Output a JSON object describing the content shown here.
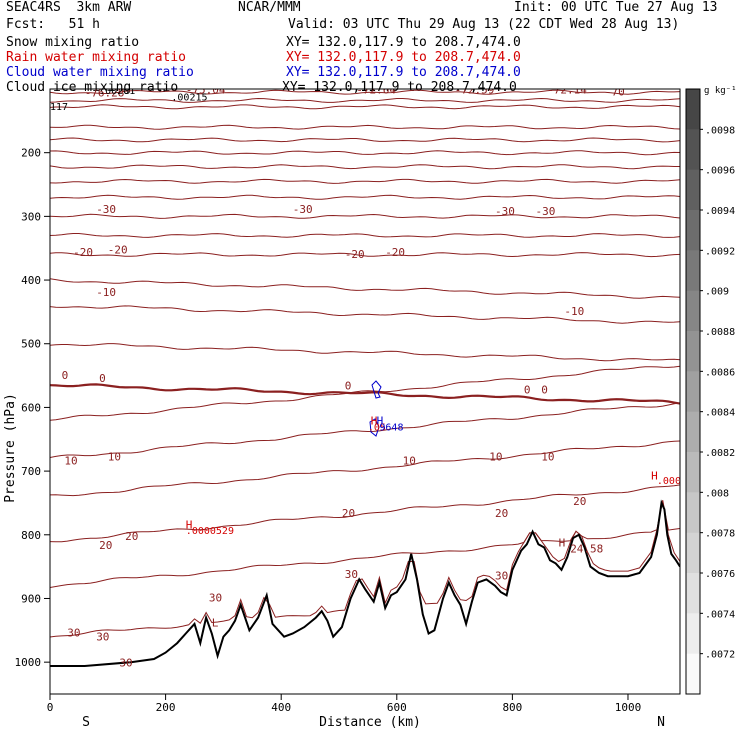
{
  "header": {
    "title_left": "SEAC4RS  3km ARW",
    "title_center": "NCAR/MMM",
    "init": "Init: 00 UTC Tue 27 Aug 13",
    "fcst": "Fcst:   51 h",
    "valid": "Valid: 03 UTC Thu 29 Aug 13 (22 CDT Wed 28 Aug 13)"
  },
  "fields": [
    {
      "name": "Snow mixing ratio",
      "xy": "XY= 132.0,117.9 to 208.7,474.0",
      "color": "#000000"
    },
    {
      "name": "Rain water mixing ratio",
      "xy": "XY= 132.0,117.9 to 208.7,474.0",
      "color": "#d40000"
    },
    {
      "name": "Cloud water mixing ratio",
      "xy": "XY= 132.0,117.9 to 208.7,474.0",
      "color": "#0000cc"
    },
    {
      "name": "Cloud ice mixing ratio",
      "xy": "XY= 132.0,117.9 to 208.7,474.0",
      "color": "#000000"
    }
  ],
  "chart_data": {
    "type": "contour cross-section",
    "xlabel": "Distance (km)",
    "ylabel": "Pressure (hPa)",
    "xlim": [
      0,
      1090
    ],
    "ylim": [
      1050,
      100
    ],
    "x_ticks": [
      0,
      200,
      400,
      600,
      800,
      1000
    ],
    "y_ticks": [
      200,
      300,
      400,
      500,
      600,
      700,
      800,
      900,
      1000
    ],
    "x_end_labels": {
      "left": "S",
      "right": "N"
    },
    "colorbar": {
      "unit": "g kg⁻¹",
      "ticks": [
        ".0098",
        ".0096",
        ".0094",
        ".0092",
        ".009",
        ".0088",
        ".0086",
        ".0084",
        ".0082",
        ".008",
        ".0078",
        ".0076",
        ".0074",
        ".0072"
      ]
    },
    "temperature_contour_color": "#8b2020",
    "terrain_color": "#000000",
    "terrain": {
      "x": [
        0,
        60,
        140,
        180,
        200,
        220,
        235,
        250,
        260,
        270,
        280,
        290,
        300,
        310,
        320,
        330,
        345,
        360,
        375,
        385,
        395,
        405,
        420,
        440,
        460,
        470,
        480,
        490,
        505,
        520,
        535,
        545,
        560,
        570,
        580,
        590,
        600,
        615,
        625,
        635,
        645,
        655,
        665,
        680,
        690,
        700,
        710,
        720,
        730,
        740,
        755,
        770,
        780,
        790,
        800,
        815,
        825,
        835,
        845,
        855,
        865,
        875,
        885,
        895,
        905,
        915,
        925,
        935,
        950,
        965,
        980,
        1000,
        1020,
        1040,
        1050,
        1058,
        1063,
        1068,
        1075,
        1083,
        1090
      ],
      "p": [
        1006,
        1006,
        1000,
        995,
        985,
        970,
        955,
        940,
        970,
        930,
        955,
        990,
        960,
        950,
        935,
        910,
        950,
        930,
        895,
        940,
        950,
        960,
        955,
        945,
        930,
        920,
        935,
        960,
        945,
        900,
        870,
        885,
        905,
        875,
        915,
        895,
        890,
        870,
        830,
        870,
        925,
        955,
        950,
        900,
        875,
        895,
        910,
        940,
        905,
        875,
        870,
        880,
        890,
        895,
        855,
        825,
        815,
        795,
        815,
        820,
        840,
        845,
        855,
        835,
        805,
        800,
        820,
        850,
        860,
        865,
        865,
        865,
        860,
        835,
        800,
        750,
        760,
        800,
        830,
        840,
        850
      ]
    },
    "isotherm_levels": [
      -76,
      -72,
      -70,
      -60,
      -55,
      -50,
      -45,
      -40,
      -35,
      -30,
      -25,
      -20,
      -15,
      -10,
      -5,
      0,
      5,
      10,
      15,
      20,
      25,
      30
    ],
    "contour_labels": [
      {
        "text": "-76.28",
        "x": 60,
        "p": 112,
        "color": "#8b2020"
      },
      {
        "text": "-75.04",
        "x": 235,
        "p": 107,
        "color": "#8b2020"
      },
      {
        "text": "-72.64",
        "x": 530,
        "p": 107,
        "color": "#8b2020"
      },
      {
        "text": "-72.59",
        "x": 700,
        "p": 107,
        "color": "#8b2020"
      },
      {
        "text": "-72.14",
        "x": 860,
        "p": 107,
        "color": "#8b2020"
      },
      {
        "text": "-70",
        "x": 960,
        "p": 110,
        "color": "#8b2020"
      },
      {
        "text": "-30",
        "x": 80,
        "p": 295,
        "color": "#8b2020"
      },
      {
        "text": "-30",
        "x": 420,
        "p": 295,
        "color": "#8b2020"
      },
      {
        "text": "-30",
        "x": 770,
        "p": 298,
        "color": "#8b2020"
      },
      {
        "text": "-30",
        "x": 840,
        "p": 298,
        "color": "#8b2020"
      },
      {
        "text": "-20",
        "x": 40,
        "p": 362,
        "color": "#8b2020"
      },
      {
        "text": "-20",
        "x": 100,
        "p": 358,
        "color": "#8b2020"
      },
      {
        "text": "-20",
        "x": 510,
        "p": 365,
        "color": "#8b2020"
      },
      {
        "text": "-20",
        "x": 580,
        "p": 362,
        "color": "#8b2020"
      },
      {
        "text": "-10",
        "x": 80,
        "p": 425,
        "color": "#8b2020"
      },
      {
        "text": "-10",
        "x": 890,
        "p": 455,
        "color": "#8b2020"
      },
      {
        "text": "0",
        "x": 20,
        "p": 555,
        "color": "#8b2020"
      },
      {
        "text": "0",
        "x": 85,
        "p": 560,
        "color": "#8b2020"
      },
      {
        "text": "0",
        "x": 510,
        "p": 572,
        "color": "#8b2020"
      },
      {
        "text": "0",
        "x": 820,
        "p": 578,
        "color": "#8b2020"
      },
      {
        "text": "0",
        "x": 850,
        "p": 578,
        "color": "#8b2020"
      },
      {
        "text": "10",
        "x": 25,
        "p": 690,
        "color": "#8b2020"
      },
      {
        "text": "10",
        "x": 100,
        "p": 683,
        "color": "#8b2020"
      },
      {
        "text": "10",
        "x": 610,
        "p": 690,
        "color": "#8b2020"
      },
      {
        "text": "10",
        "x": 760,
        "p": 683,
        "color": "#8b2020"
      },
      {
        "text": "10",
        "x": 850,
        "p": 683,
        "color": "#8b2020"
      },
      {
        "text": "20",
        "x": 85,
        "p": 822,
        "color": "#8b2020"
      },
      {
        "text": "20",
        "x": 130,
        "p": 808,
        "color": "#8b2020"
      },
      {
        "text": "20",
        "x": 505,
        "p": 772,
        "color": "#8b2020"
      },
      {
        "text": "20",
        "x": 770,
        "p": 772,
        "color": "#8b2020"
      },
      {
        "text": "20",
        "x": 905,
        "p": 753,
        "color": "#8b2020"
      },
      {
        "text": "30",
        "x": 510,
        "p": 868,
        "color": "#8b2020"
      },
      {
        "text": "30",
        "x": 770,
        "p": 870,
        "color": "#8b2020"
      },
      {
        "text": "30",
        "x": 275,
        "p": 905,
        "color": "#8b2020"
      },
      {
        "text": "30",
        "x": 30,
        "p": 960,
        "color": "#8b2020"
      },
      {
        "text": "30",
        "x": 80,
        "p": 966,
        "color": "#8b2020"
      },
      {
        "text": "30",
        "x": 120,
        "p": 1007,
        "color": "#8b2020"
      },
      {
        "text": "24.58",
        "x": 900,
        "p": 828,
        "color": "#8b2020"
      }
    ],
    "markers": [
      {
        "text": "L",
        "x": 130,
        "p": 96,
        "color": "#8b2020"
      },
      {
        "text": "L",
        "x": 230,
        "p": 93,
        "color": "#000000"
      },
      {
        "text": "L",
        "x": 690,
        "p": 93,
        "color": "#8b2020"
      },
      {
        "text": "L",
        "x": 840,
        "p": 93,
        "color": "#8b2020"
      },
      {
        "text": "H",
        "x": 188,
        "p": 104,
        "color": "#000000"
      },
      {
        "text": "H",
        "x": 235,
        "p": 790,
        "color": "#d40000"
      },
      {
        "text": "H",
        "x": 1040,
        "p": 713,
        "color": "#d40000"
      },
      {
        "text": "H",
        "x": 880,
        "p": 818,
        "color": "#8b2020"
      },
      {
        "text": "H",
        "x": 555,
        "p": 627,
        "color": "#d40000"
      },
      {
        "text": "H",
        "x": 565,
        "p": 627,
        "color": "#0000cc"
      },
      {
        "text": "L",
        "x": 280,
        "p": 944,
        "color": "#8b2020"
      }
    ],
    "value_labels": [
      {
        "text": ".00201",
        "x": 85,
        "p": 108,
        "color": "#000000"
      },
      {
        "text": ".00215",
        "x": 210,
        "p": 118,
        "color": "#000000"
      },
      {
        "text": "117",
        "x": 0,
        "p": 133,
        "color": "#000000"
      },
      {
        "text": ".0000529",
        "x": 235,
        "p": 799,
        "color": "#d40000"
      },
      {
        "text": ".00000",
        "x": 1050,
        "p": 720,
        "color": "#d40000"
      },
      {
        "text": ".05",
        "x": 550,
        "p": 636,
        "color": "#d40000"
      },
      {
        "text": "9648",
        "x": 570,
        "p": 636,
        "color": "#0000cc"
      }
    ]
  }
}
